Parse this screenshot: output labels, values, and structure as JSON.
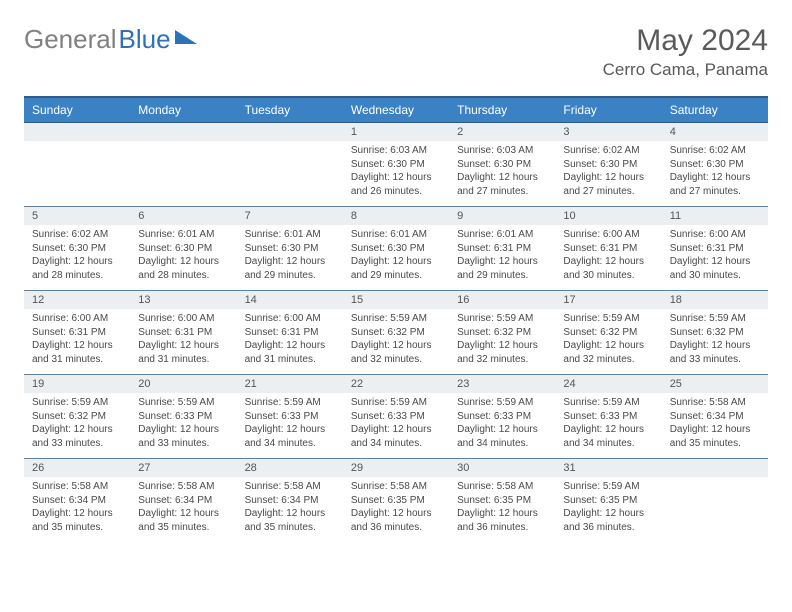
{
  "logo": {
    "gray": "General",
    "blue": "Blue"
  },
  "title": "May 2024",
  "location": "Cerro Cama, Panama",
  "colors": {
    "header_bg": "#3b82c4",
    "header_border": "#2d5a8a",
    "daynum_bg": "#eceff1",
    "cell_border": "#6080a0",
    "text": "#4a4a4a",
    "title_color": "#5a5a5a"
  },
  "weekdays": [
    "Sunday",
    "Monday",
    "Tuesday",
    "Wednesday",
    "Thursday",
    "Friday",
    "Saturday"
  ],
  "weeks": [
    [
      null,
      null,
      null,
      {
        "n": "1",
        "sr": "6:03 AM",
        "ss": "6:30 PM",
        "dl": "12 hours and 26 minutes."
      },
      {
        "n": "2",
        "sr": "6:03 AM",
        "ss": "6:30 PM",
        "dl": "12 hours and 27 minutes."
      },
      {
        "n": "3",
        "sr": "6:02 AM",
        "ss": "6:30 PM",
        "dl": "12 hours and 27 minutes."
      },
      {
        "n": "4",
        "sr": "6:02 AM",
        "ss": "6:30 PM",
        "dl": "12 hours and 27 minutes."
      }
    ],
    [
      {
        "n": "5",
        "sr": "6:02 AM",
        "ss": "6:30 PM",
        "dl": "12 hours and 28 minutes."
      },
      {
        "n": "6",
        "sr": "6:01 AM",
        "ss": "6:30 PM",
        "dl": "12 hours and 28 minutes."
      },
      {
        "n": "7",
        "sr": "6:01 AM",
        "ss": "6:30 PM",
        "dl": "12 hours and 29 minutes."
      },
      {
        "n": "8",
        "sr": "6:01 AM",
        "ss": "6:30 PM",
        "dl": "12 hours and 29 minutes."
      },
      {
        "n": "9",
        "sr": "6:01 AM",
        "ss": "6:31 PM",
        "dl": "12 hours and 29 minutes."
      },
      {
        "n": "10",
        "sr": "6:00 AM",
        "ss": "6:31 PM",
        "dl": "12 hours and 30 minutes."
      },
      {
        "n": "11",
        "sr": "6:00 AM",
        "ss": "6:31 PM",
        "dl": "12 hours and 30 minutes."
      }
    ],
    [
      {
        "n": "12",
        "sr": "6:00 AM",
        "ss": "6:31 PM",
        "dl": "12 hours and 31 minutes."
      },
      {
        "n": "13",
        "sr": "6:00 AM",
        "ss": "6:31 PM",
        "dl": "12 hours and 31 minutes."
      },
      {
        "n": "14",
        "sr": "6:00 AM",
        "ss": "6:31 PM",
        "dl": "12 hours and 31 minutes."
      },
      {
        "n": "15",
        "sr": "5:59 AM",
        "ss": "6:32 PM",
        "dl": "12 hours and 32 minutes."
      },
      {
        "n": "16",
        "sr": "5:59 AM",
        "ss": "6:32 PM",
        "dl": "12 hours and 32 minutes."
      },
      {
        "n": "17",
        "sr": "5:59 AM",
        "ss": "6:32 PM",
        "dl": "12 hours and 32 minutes."
      },
      {
        "n": "18",
        "sr": "5:59 AM",
        "ss": "6:32 PM",
        "dl": "12 hours and 33 minutes."
      }
    ],
    [
      {
        "n": "19",
        "sr": "5:59 AM",
        "ss": "6:32 PM",
        "dl": "12 hours and 33 minutes."
      },
      {
        "n": "20",
        "sr": "5:59 AM",
        "ss": "6:33 PM",
        "dl": "12 hours and 33 minutes."
      },
      {
        "n": "21",
        "sr": "5:59 AM",
        "ss": "6:33 PM",
        "dl": "12 hours and 34 minutes."
      },
      {
        "n": "22",
        "sr": "5:59 AM",
        "ss": "6:33 PM",
        "dl": "12 hours and 34 minutes."
      },
      {
        "n": "23",
        "sr": "5:59 AM",
        "ss": "6:33 PM",
        "dl": "12 hours and 34 minutes."
      },
      {
        "n": "24",
        "sr": "5:59 AM",
        "ss": "6:33 PM",
        "dl": "12 hours and 34 minutes."
      },
      {
        "n": "25",
        "sr": "5:58 AM",
        "ss": "6:34 PM",
        "dl": "12 hours and 35 minutes."
      }
    ],
    [
      {
        "n": "26",
        "sr": "5:58 AM",
        "ss": "6:34 PM",
        "dl": "12 hours and 35 minutes."
      },
      {
        "n": "27",
        "sr": "5:58 AM",
        "ss": "6:34 PM",
        "dl": "12 hours and 35 minutes."
      },
      {
        "n": "28",
        "sr": "5:58 AM",
        "ss": "6:34 PM",
        "dl": "12 hours and 35 minutes."
      },
      {
        "n": "29",
        "sr": "5:58 AM",
        "ss": "6:35 PM",
        "dl": "12 hours and 36 minutes."
      },
      {
        "n": "30",
        "sr": "5:58 AM",
        "ss": "6:35 PM",
        "dl": "12 hours and 36 minutes."
      },
      {
        "n": "31",
        "sr": "5:59 AM",
        "ss": "6:35 PM",
        "dl": "12 hours and 36 minutes."
      },
      null
    ]
  ],
  "labels": {
    "sunrise": "Sunrise: ",
    "sunset": "Sunset: ",
    "daylight": "Daylight: "
  }
}
